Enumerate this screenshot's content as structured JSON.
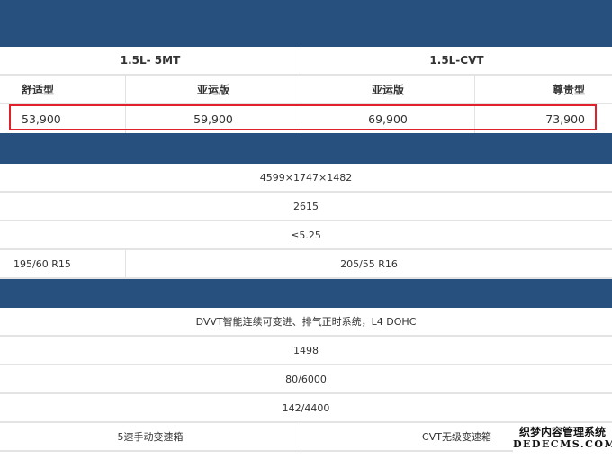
{
  "header": {
    "groups": [
      "1.5L- 5MT",
      "1.5L-CVT"
    ],
    "trims": [
      "舒适型",
      "亚运版",
      "亚运版",
      "尊贵型"
    ]
  },
  "prices": [
    "53,900",
    "59,900",
    "69,900",
    "73,900"
  ],
  "body_specs": {
    "dimensions": "4599×1747×1482",
    "wheelbase": "2615",
    "fuel": "≤5.25",
    "tires": [
      "195/60 R15",
      "205/55 R16"
    ]
  },
  "engine_specs": {
    "tech": "DVVT智能连续可变进、排气正时系统，L4 DOHC",
    "displacement": "1498",
    "power": "80/6000",
    "torque": "142/4400",
    "transmission": [
      "5速手动变速箱",
      "CVT无级变速箱"
    ]
  },
  "watermark": {
    "line1": "织梦内容管理系统",
    "line2": "DEDECMS.COM"
  },
  "colors": {
    "band": "#28507f",
    "highlight": "#e0202a"
  }
}
